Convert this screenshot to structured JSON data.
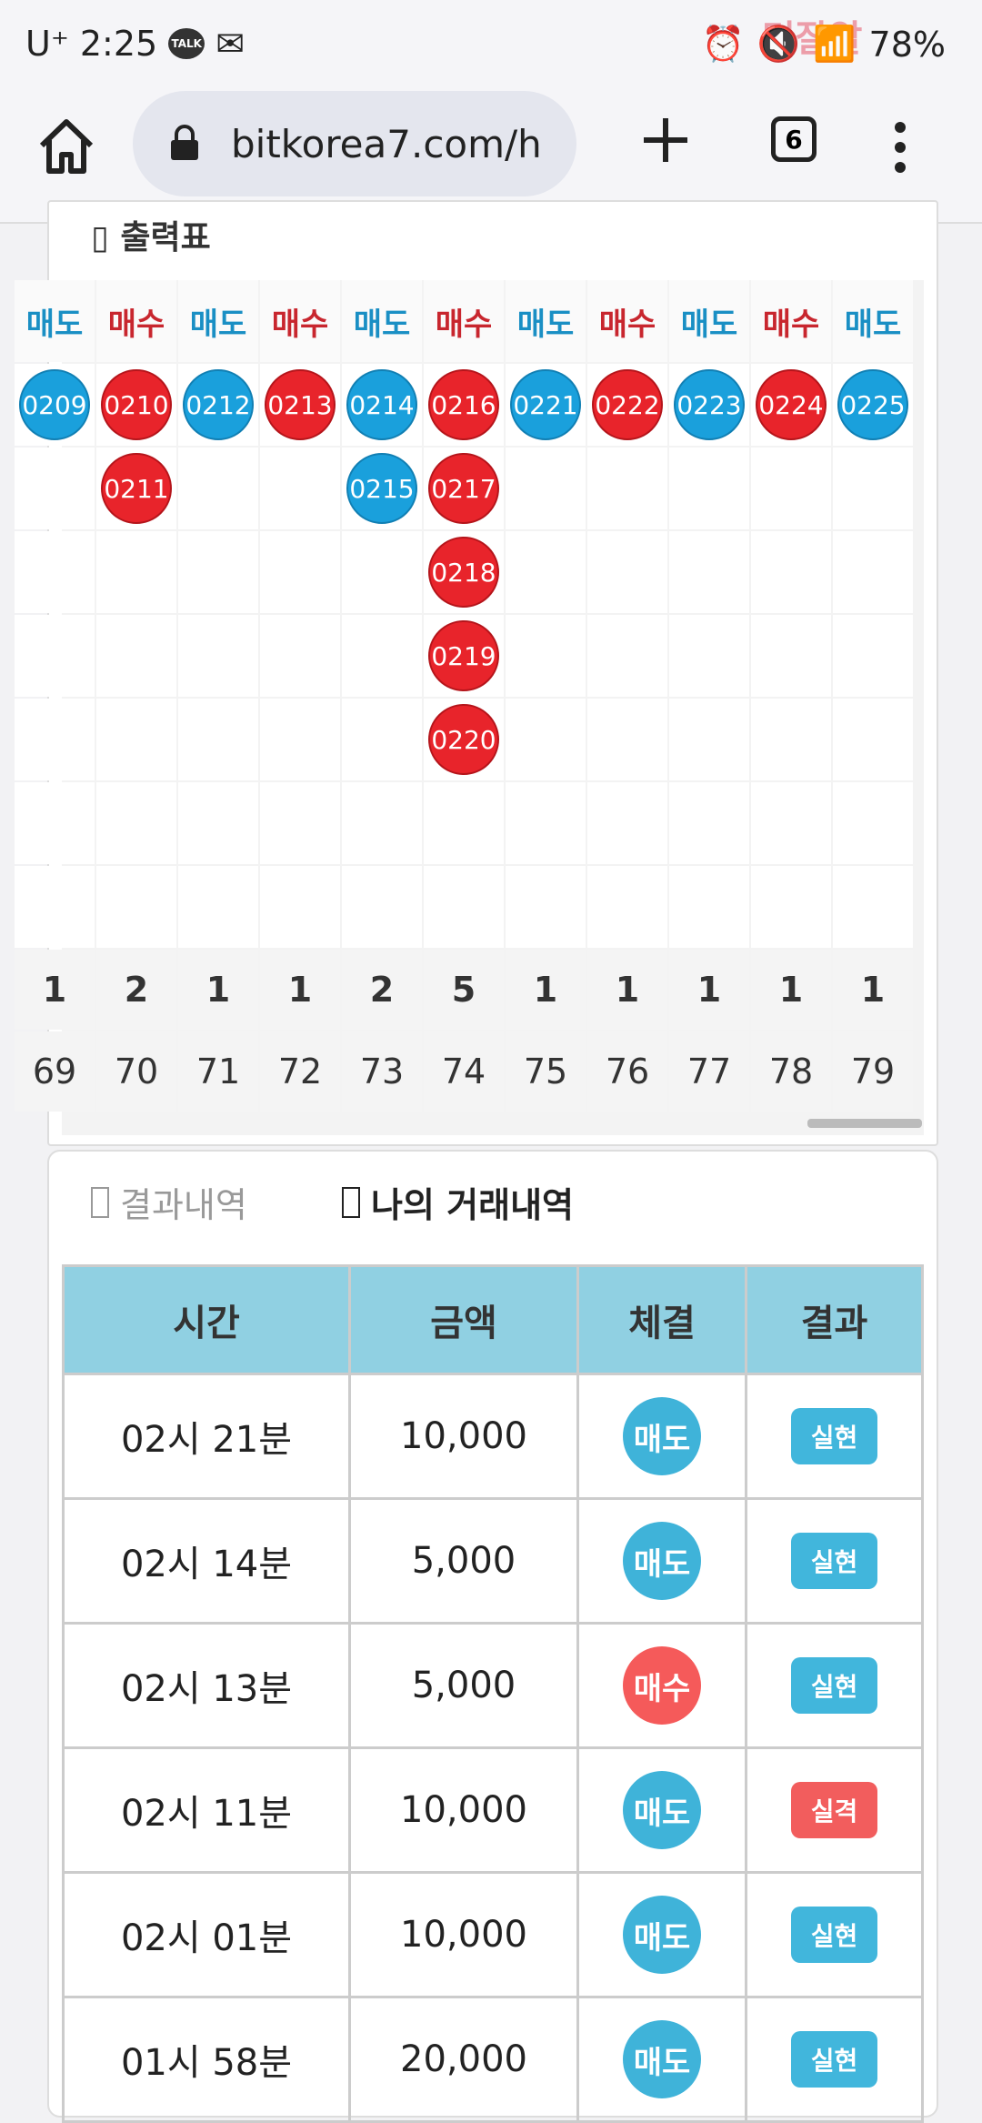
{
  "status": {
    "carrier": "U⁺",
    "time": "2:25",
    "talk": "TALK",
    "battery": "78%",
    "watermark": "먹잘알"
  },
  "browser": {
    "url": "bitkorea7.com/h",
    "tab_count": "6"
  },
  "chart_card": {
    "title": "출력표"
  },
  "grid": {
    "sell_label": "매도",
    "buy_label": "매수",
    "columns": [
      {
        "head": "매도",
        "type": "sell",
        "balls": [
          "0209"
        ],
        "count": "1",
        "num": "69"
      },
      {
        "head": "매수",
        "type": "buy",
        "balls": [
          "0210",
          "0211"
        ],
        "count": "2",
        "num": "70"
      },
      {
        "head": "매도",
        "type": "sell",
        "balls": [
          "0212"
        ],
        "count": "1",
        "num": "71"
      },
      {
        "head": "매수",
        "type": "buy",
        "balls": [
          "0213"
        ],
        "count": "1",
        "num": "72"
      },
      {
        "head": "매도",
        "type": "sell",
        "balls": [
          "0214",
          "0215"
        ],
        "count": "2",
        "num": "73"
      },
      {
        "head": "매수",
        "type": "buy",
        "balls": [
          "0216",
          "0217",
          "0218",
          "0219",
          "0220"
        ],
        "count": "5",
        "num": "74"
      },
      {
        "head": "매도",
        "type": "sell",
        "balls": [
          "0221"
        ],
        "count": "1",
        "num": "75"
      },
      {
        "head": "매수",
        "type": "buy",
        "balls": [
          "0222"
        ],
        "count": "1",
        "num": "76"
      },
      {
        "head": "매도",
        "type": "sell",
        "balls": [
          "0223"
        ],
        "count": "1",
        "num": "77"
      },
      {
        "head": "매수",
        "type": "buy",
        "balls": [
          "0224"
        ],
        "count": "1",
        "num": "78"
      },
      {
        "head": "매도",
        "type": "sell",
        "balls": [
          "0225"
        ],
        "count": "1",
        "num": "79"
      }
    ]
  },
  "history": {
    "tab_results": "결과내역",
    "tab_my": "나의 거래내역",
    "headers": [
      "시간",
      "금액",
      "체결",
      "결과"
    ],
    "rows": [
      {
        "time": "02시 21분",
        "amount": "10,000",
        "side": "매도",
        "side_type": "sell",
        "result": "실현",
        "result_type": "good"
      },
      {
        "time": "02시 14분",
        "amount": "5,000",
        "side": "매도",
        "side_type": "sell",
        "result": "실현",
        "result_type": "good"
      },
      {
        "time": "02시 13분",
        "amount": "5,000",
        "side": "매수",
        "side_type": "buy",
        "result": "실현",
        "result_type": "good"
      },
      {
        "time": "02시 11분",
        "amount": "10,000",
        "side": "매도",
        "side_type": "sell",
        "result": "실격",
        "result_type": "bad"
      },
      {
        "time": "02시 01분",
        "amount": "10,000",
        "side": "매도",
        "side_type": "sell",
        "result": "실현",
        "result_type": "good"
      },
      {
        "time": "01시 58분",
        "amount": "20,000",
        "side": "매도",
        "side_type": "sell",
        "result": "실현",
        "result_type": "good"
      }
    ]
  },
  "colors": {
    "sell": "#1a8fc4",
    "buy": "#c8262e"
  }
}
